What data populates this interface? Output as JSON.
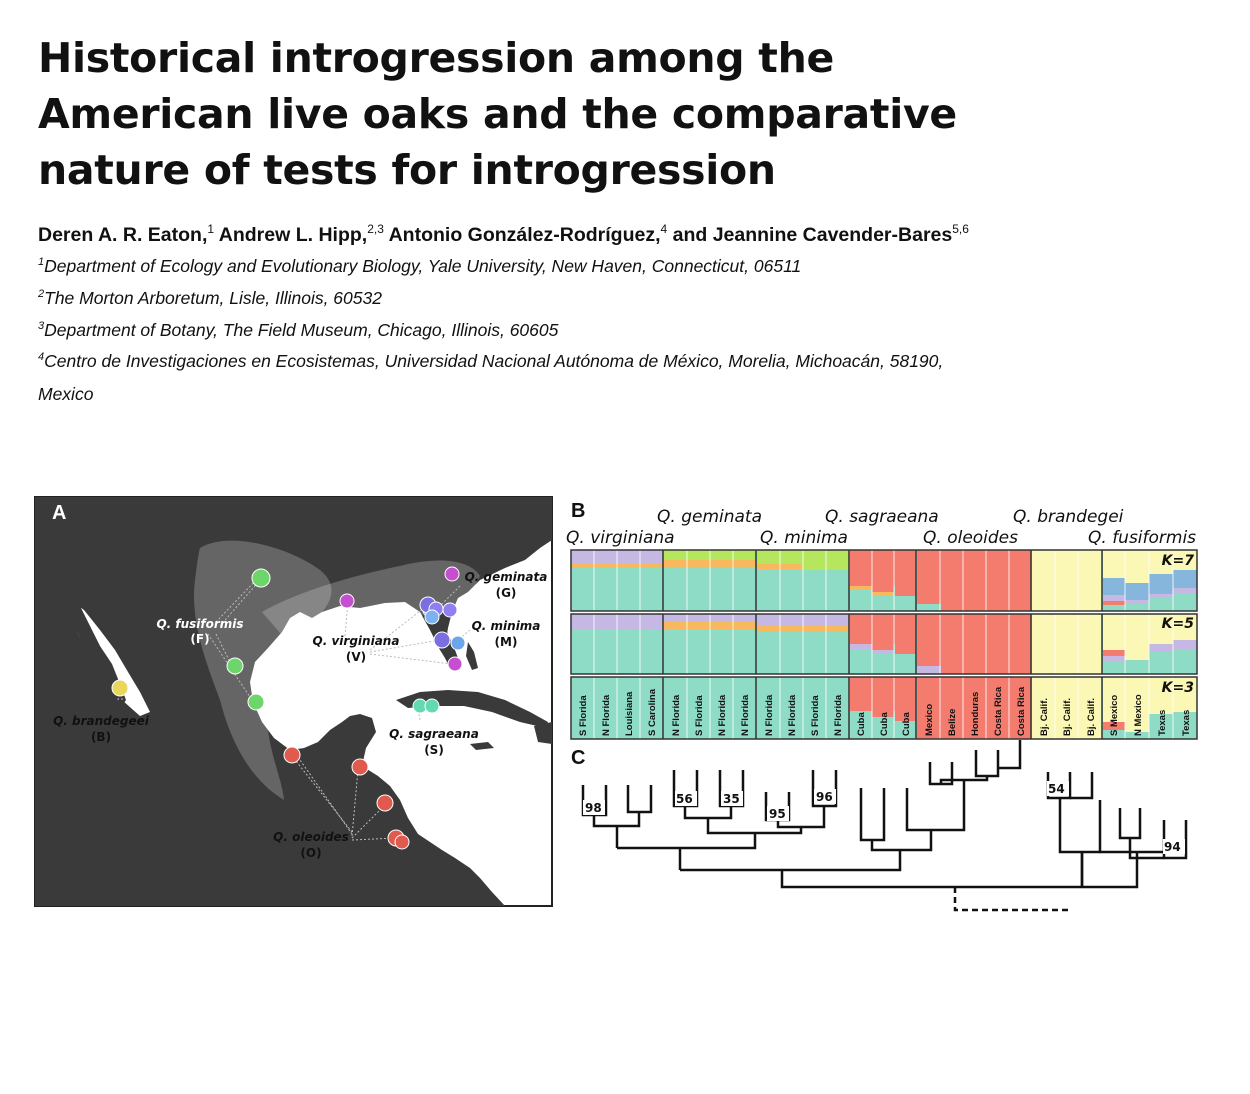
{
  "paper": {
    "title_lines": [
      "Historical introgression among the",
      "American live oaks and the comparative",
      "nature of tests for introgression"
    ],
    "authors": [
      {
        "name": "Deren A. R. Eaton,",
        "sup": "1"
      },
      {
        "name": "Andrew L. Hipp,",
        "sup": "2,3"
      },
      {
        "name": "Antonio González-Rodríguez,",
        "sup": "4"
      },
      {
        "name": "and Jeannine Cavender-Bares",
        "sup": "5,6"
      }
    ],
    "affiliations": [
      {
        "sup": "1",
        "text": "Department of Ecology and Evolutionary Biology, Yale University, New Haven, Connecticut, 06511"
      },
      {
        "sup": "2",
        "text": "The Morton Arboretum, Lisle, Illinois, 60532"
      },
      {
        "sup": "3",
        "text": "Department of Botany, The Field Museum, Chicago, Illinois, 60605"
      },
      {
        "sup": "4",
        "text": "Centro de Investigaciones en Ecosistemas, Universidad Nacional Autónoma de México, Morelia, Michoacán, 58190,"
      },
      {
        "sup": "",
        "text": "Mexico"
      }
    ]
  },
  "figure": {
    "panel_a": {
      "letter": "A",
      "labels": [
        {
          "id": "fusiformis",
          "name": "Q. fusiformis",
          "code": "(F)"
        },
        {
          "id": "virginiana",
          "name": "Q. virginiana",
          "code": "(V)"
        },
        {
          "id": "geminata",
          "name": "Q. geminata",
          "code": "(G)"
        },
        {
          "id": "minima",
          "name": "Q. minima",
          "code": "(M)"
        },
        {
          "id": "brandegeei",
          "name": "Q. brandegeei",
          "code": "(B)"
        },
        {
          "id": "sagraeana",
          "name": "Q. sagraeana",
          "code": "(S)"
        },
        {
          "id": "oleoides",
          "name": "Q. oleoides",
          "code": "(O)"
        }
      ]
    },
    "panel_b": {
      "letter": "B",
      "species_top": [
        "Q. geminata",
        "Q. sagraeana",
        "Q. brandegei"
      ],
      "species_bottom": [
        "Q. virginiana",
        "Q. minima",
        "Q. oleoides",
        "Q. fusiformis"
      ],
      "k_labels": [
        "K=7",
        "K=5",
        "K=3"
      ],
      "sample_labels": [
        [
          "S Florida",
          "N Florida",
          "Louisiana",
          "S Carolina"
        ],
        [
          "N Florida",
          "S Florida",
          "N Florida",
          "N Florida"
        ],
        [
          "N Florida",
          "N Florida",
          "S Florida",
          "N Florida"
        ],
        [
          "Cuba",
          "Cuba",
          "Cuba"
        ],
        [
          "Mexico",
          "Belize",
          "Honduras",
          "Costa Rica",
          "Costa Rica"
        ],
        [
          "Bj. Calif.",
          "Bj. Calif.",
          "Bj. Calif."
        ],
        [
          "S Mexico",
          "N Mexico",
          "Texas",
          "Texas"
        ]
      ],
      "colors": {
        "teal": "#8fdcc6",
        "orange": "#f7b85e",
        "lavender": "#c5b9e4",
        "red": "#f47c6e",
        "yellow": "#fbf7b4",
        "lime": "#b5e65e",
        "blue": "#87b6dc",
        "pink": "#f2a6b9"
      }
    },
    "panel_c": {
      "letter": "C",
      "bootstrap": [
        "98",
        "56",
        "35",
        "95",
        "96",
        "54",
        "94"
      ]
    }
  }
}
